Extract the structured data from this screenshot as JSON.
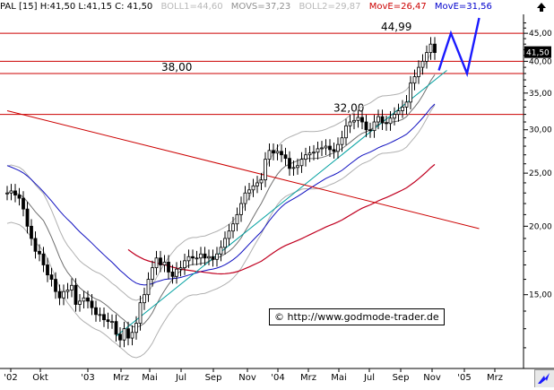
{
  "header": {
    "main": "PAL [15] H:41,50 L:41,15 C: 41,50",
    "boll1": "BOLL1=44,60",
    "movs": "MOVS=37,23",
    "boll2": "BOLL2=29,87",
    "move1": "MovE=26,47",
    "move2": "MovE=31,56"
  },
  "watermark": "© http://www.godmode-trader.de",
  "colors": {
    "resistance": "#cc0000",
    "trendline": "#00a0a0",
    "ema_blue": "#1010c0",
    "ema_red": "#c00020",
    "projection": "#1a1aff",
    "band": "#b0b0b0",
    "sma": "#707070",
    "price": "#000000"
  },
  "icons": {
    "arrow": "up-arrow-icon",
    "nav": "chart-nav-icon"
  },
  "chart_data": {
    "type": "line",
    "scale": "log",
    "ylim": [
      11,
      48
    ],
    "y_ticks": [
      15,
      20,
      25,
      30,
      35,
      40,
      45
    ],
    "y_tick_labels": [
      "15,00",
      "20,00",
      "25,00",
      "30,00",
      "35,00",
      "40,00",
      "45,00"
    ],
    "last_value_label": "41,50",
    "x_tick_labels": [
      "'02",
      "Okt",
      "'03",
      "Mrz",
      "Mai",
      "Jul",
      "Sep",
      "Nov",
      "'04",
      "Mrz",
      "Mai",
      "Jul",
      "Sep",
      "Nov",
      "'05",
      "Mrz"
    ],
    "annotations": [
      {
        "text": "44,99",
        "value": 44.99
      },
      {
        "text": "38,00",
        "value": 38.0
      },
      {
        "text": "32,00",
        "value": 32.0
      }
    ],
    "horizontal_lines": [
      45.0,
      40.0,
      38.0,
      32.0
    ],
    "price_series": [
      23.0,
      23.2,
      22.8,
      22.5,
      21.5,
      20.0,
      19.0,
      18.0,
      17.8,
      17.0,
      16.3,
      16.0,
      15.2,
      14.8,
      15.2,
      15.3,
      15.6,
      14.4,
      14.6,
      14.8,
      14.6,
      14.2,
      13.8,
      13.8,
      13.5,
      13.4,
      13.4,
      12.7,
      12.4,
      13.0,
      12.5,
      12.8,
      13.3,
      14.5,
      15.0,
      16.0,
      16.8,
      17.5,
      17.0,
      17.2,
      16.5,
      16.2,
      16.7,
      16.8,
      17.3,
      17.6,
      17.5,
      17.5,
      17.8,
      17.5,
      17.6,
      17.4,
      17.8,
      18.3,
      19.0,
      19.6,
      20.2,
      21.0,
      22.0,
      23.0,
      23.3,
      23.7,
      24.0,
      24.3,
      26.5,
      27.5,
      27.2,
      27.4,
      27.0,
      26.6,
      25.5,
      25.6,
      25.8,
      26.5,
      27.0,
      27.2,
      27.3,
      27.7,
      27.8,
      28.0,
      27.6,
      27.4,
      28.2,
      29.0,
      30.5,
      31.0,
      31.2,
      31.6,
      31.0,
      30.0,
      29.9,
      31.0,
      31.7,
      30.9,
      30.8,
      31.5,
      32.0,
      32.5,
      33.0,
      33.7,
      36.5,
      37.5,
      39.0,
      40.0,
      41.5,
      43.0,
      41.5
    ],
    "series": [
      {
        "type": "candles",
        "values_ref": "price_series"
      },
      {
        "type": "sma",
        "window": 10
      },
      {
        "type": "bollinger",
        "window": 10,
        "width": 0.12
      },
      {
        "type": "ema",
        "window": 30,
        "color": "ema_blue"
      },
      {
        "type": "ema",
        "window": 60,
        "color": "ema_red",
        "offset": 0.88
      }
    ],
    "trendlines": [
      {
        "color": "trendline",
        "from": [
          27,
          12.6
        ],
        "to": [
          109,
          38.5
        ]
      },
      {
        "color": "resistance",
        "from": [
          0,
          32.5
        ],
        "to": [
          117,
          19.8
        ]
      }
    ],
    "projection": {
      "points": [
        [
          107,
          38.5
        ],
        [
          110,
          45.0
        ],
        [
          114,
          38.0
        ],
        [
          117,
          48.0
        ]
      ]
    }
  }
}
